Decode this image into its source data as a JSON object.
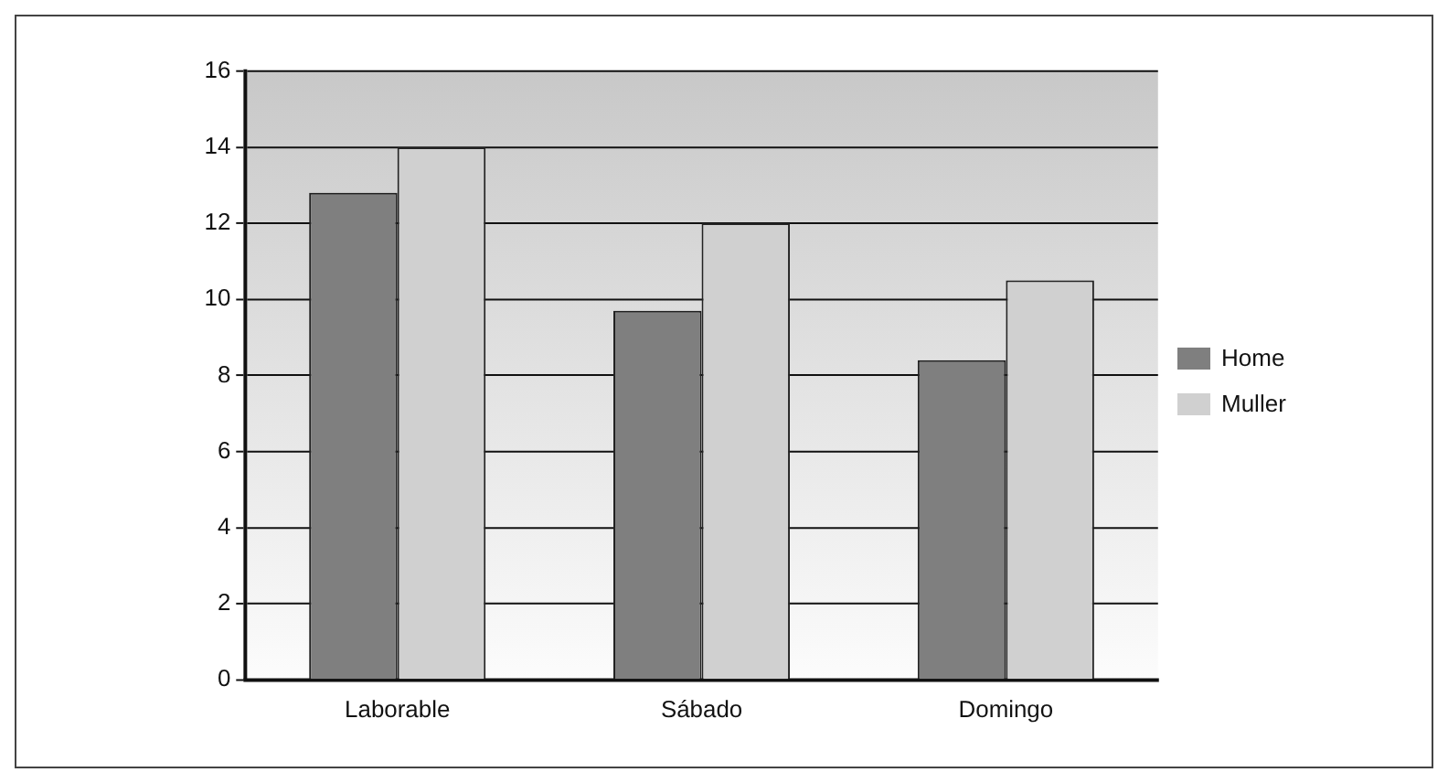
{
  "chart_data": {
    "type": "bar",
    "categories": [
      "Laborable",
      "Sábado",
      "Domingo"
    ],
    "series": [
      {
        "name": "Home",
        "color": "#7f7f7f",
        "values": [
          12.8,
          9.7,
          8.4
        ]
      },
      {
        "name": "Muller",
        "color": "#d0d0d0",
        "values": [
          14,
          12,
          10.5
        ]
      }
    ],
    "ylim": [
      0,
      16
    ],
    "yticks": [
      0,
      2,
      4,
      6,
      8,
      10,
      12,
      14,
      16
    ],
    "grid": "y",
    "legend": "right"
  }
}
